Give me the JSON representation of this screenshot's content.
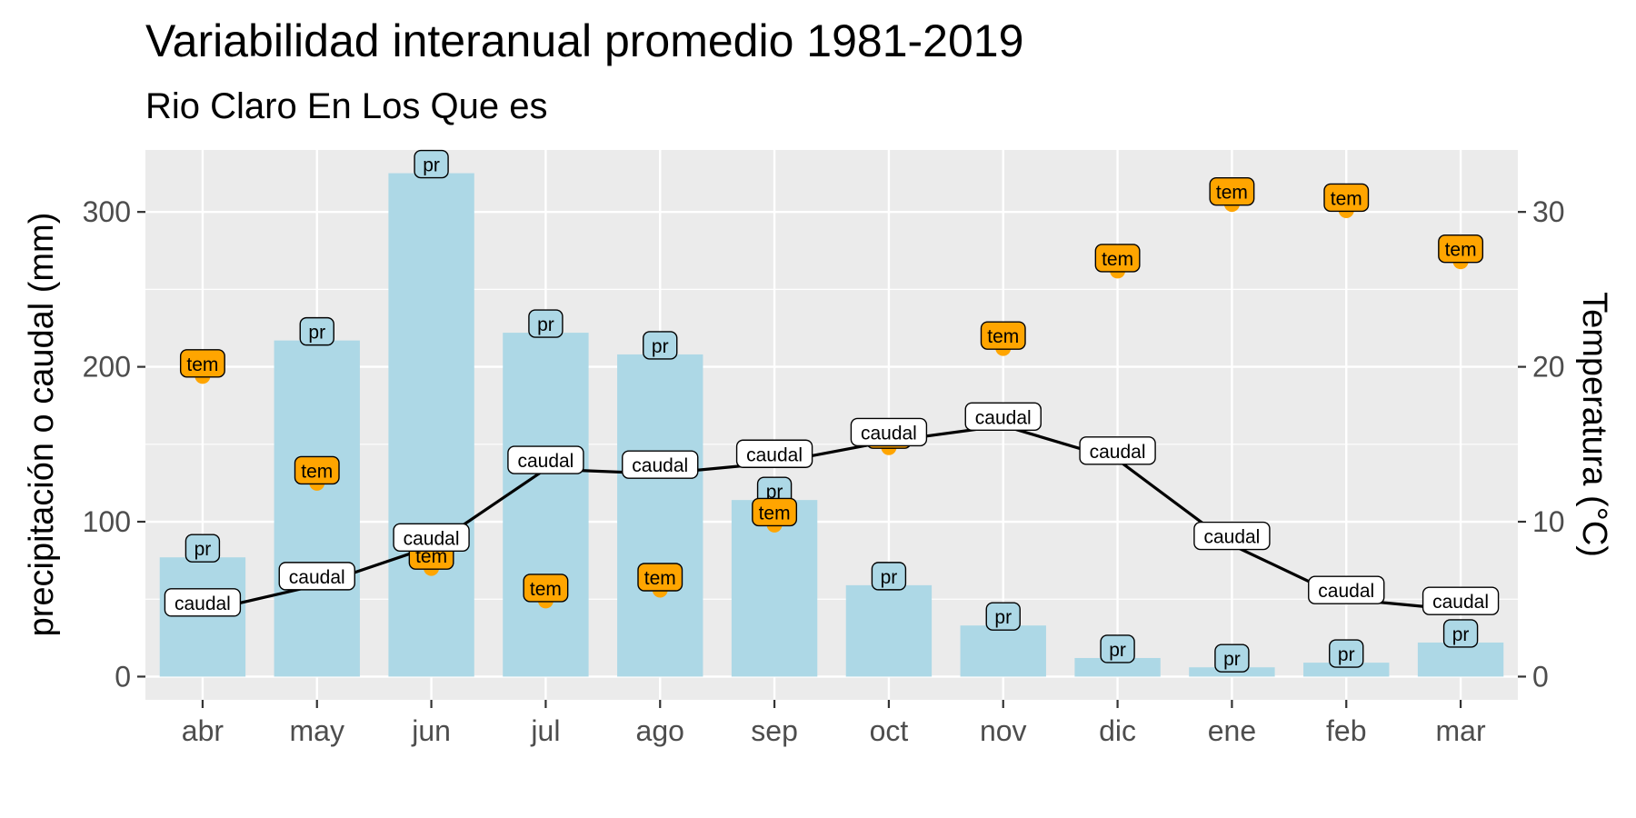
{
  "chart_data": {
    "type": "bar",
    "title": "Variabilidad interanual promedio 1981-2019",
    "subtitle": "Rio Claro En Los Que    es",
    "ylabel": "precipitación o caudal (mm)",
    "y2label": "Temperatura (°C)",
    "ylim": [
      -15,
      340
    ],
    "y2lim": [
      -1.5,
      34
    ],
    "yticks": [
      0,
      100,
      200,
      300
    ],
    "y2ticks": [
      0,
      10,
      20,
      30
    ],
    "grid": true,
    "categories": [
      "abr",
      "may",
      "jun",
      "jul",
      "ago",
      "sep",
      "oct",
      "nov",
      "dic",
      "ene",
      "feb",
      "mar"
    ],
    "series": [
      {
        "name": "pr",
        "type": "bar",
        "axis": "left",
        "color": "#add8e6",
        "values": [
          77,
          217,
          325,
          222,
          208,
          114,
          59,
          33,
          12,
          6,
          9,
          22
        ]
      },
      {
        "name": "caudal",
        "type": "line",
        "axis": "left",
        "color": "#000000",
        "values": [
          42,
          59,
          84,
          134,
          131,
          138,
          152,
          162,
          140,
          85,
          50,
          43
        ]
      },
      {
        "name": "tem",
        "type": "scatter",
        "axis": "right",
        "color": "#ffa500",
        "values": [
          19.4,
          12.5,
          7.0,
          4.9,
          5.6,
          9.8,
          14.8,
          21.2,
          26.2,
          30.5,
          30.1,
          26.8
        ]
      }
    ]
  }
}
